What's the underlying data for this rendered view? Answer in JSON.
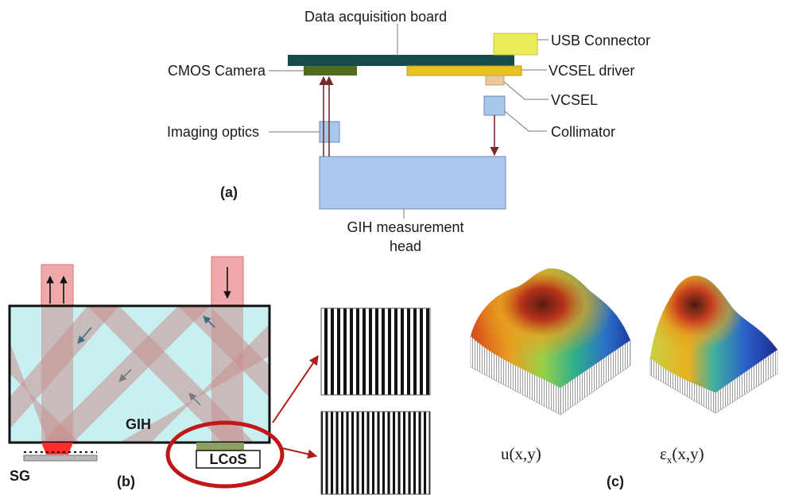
{
  "panel_a": {
    "label": "(a)",
    "board": "Data acquisition board",
    "usb": "USB Connector",
    "camera": "CMOS Camera",
    "driver": "VCSEL driver",
    "vcsel": "VCSEL",
    "optics": "Imaging optics",
    "collimator": "Collimator",
    "head_line1": "GIH measurement",
    "head_line2": "head"
  },
  "panel_b": {
    "label": "(b)",
    "gih": "GIH",
    "lcos": "LCoS",
    "sg": "SG"
  },
  "panel_c": {
    "label": "(c)",
    "u": "u(x,y)",
    "eps_base": "ε",
    "eps_sub": "x",
    "eps_args": "(x,y)"
  },
  "colors": {
    "board": "#174a4a",
    "camera": "#4f6b1e",
    "driver": "#e8c21f",
    "usb": "#ecec5a",
    "vcsel": "#e8c89a",
    "optic_box": "#a9c7e8",
    "head": "#acc8ee",
    "beam_arrow": "#7a2a2a",
    "glass": "#c8f0f0",
    "beam": "#c98f8f",
    "ring": "#c01818"
  }
}
